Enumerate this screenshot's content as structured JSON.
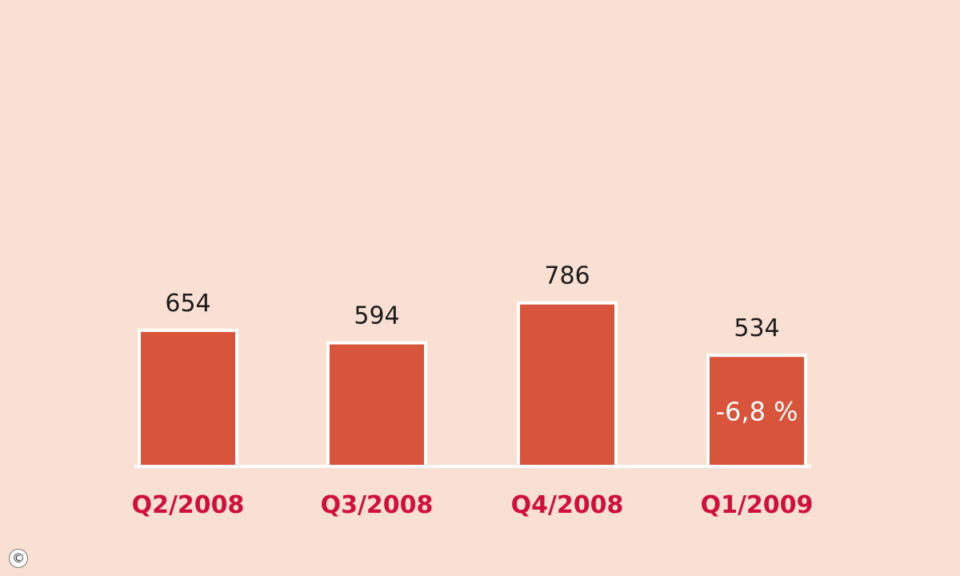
{
  "chart_data": {
    "type": "bar",
    "categories": [
      "Q2/2008",
      "Q3/2008",
      "Q4/2008",
      "Q1/2009"
    ],
    "values": [
      654,
      594,
      786,
      534
    ],
    "value_labels": [
      "654",
      "594",
      "786",
      "534"
    ],
    "annotations": [
      {
        "category": "Q1/2009",
        "text": "-6,8 %"
      }
    ],
    "title": "",
    "xlabel": "",
    "ylabel": "",
    "grid": false,
    "legend": "none",
    "colors": {
      "bar": "#d8553c",
      "bar_outline": "#ffffff",
      "category_text": "#d0103a",
      "value_text": "#1c1c1c",
      "annotation_text": "#ffffff",
      "background": "#f9e0d3",
      "baseline": "#ffffff"
    }
  },
  "footer": {
    "copyright_symbol": "©"
  }
}
